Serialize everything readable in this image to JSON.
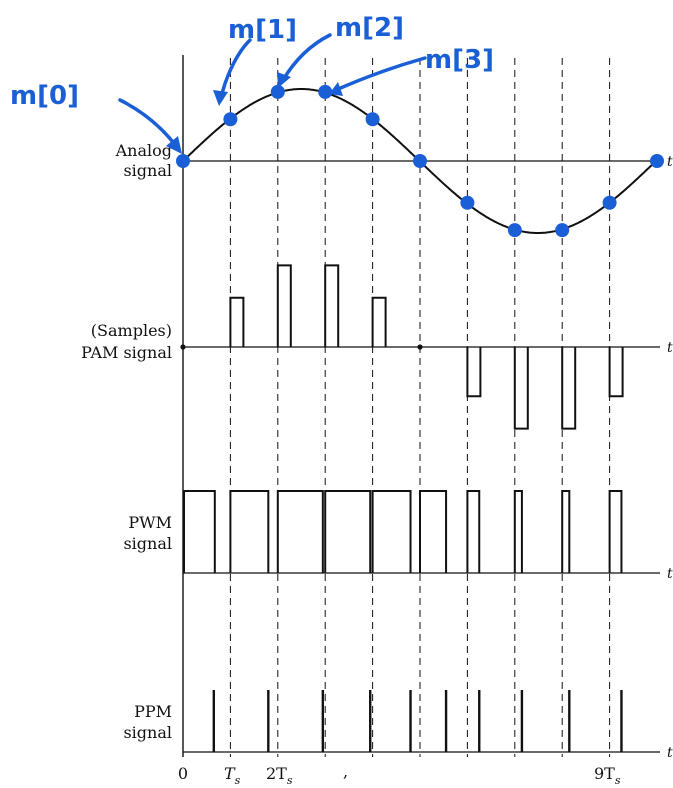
{
  "labels": {
    "analog": [
      "Analog",
      "signal"
    ],
    "pam": [
      "(Samples)",
      "PAM signal"
    ],
    "pwm": [
      "PWM",
      "signal"
    ],
    "ppm": [
      "PPM",
      "signal"
    ],
    "t": "t"
  },
  "ticks": {
    "zero": "0",
    "ts": "T",
    "two_ts": "2T",
    "nine_ts": "9T",
    "sub": "s",
    "comma": ","
  },
  "annotations": {
    "m0": "m[0]",
    "m1": "m[1]",
    "m2": "m[2]",
    "m3": "m[3]"
  },
  "colors": {
    "ink": "#111111",
    "annotation": "#1a5fd6"
  },
  "chart_data": {
    "type": "line",
    "sample_indices": [
      0,
      1,
      2,
      3,
      4,
      5,
      6,
      7,
      8,
      9,
      10
    ],
    "analog_samples": [
      0.0,
      0.58,
      0.96,
      0.96,
      0.58,
      0.0,
      -0.58,
      -0.96,
      -0.96,
      -0.58,
      0.0
    ],
    "pam_amplitudes": [
      0.0,
      0.58,
      0.96,
      0.96,
      0.58,
      0.0,
      -0.58,
      -0.96,
      -0.96,
      -0.58
    ],
    "pwm_duty": [
      0.65,
      0.8,
      0.95,
      0.95,
      0.8,
      0.55,
      0.25,
      0.15,
      0.15,
      0.25
    ],
    "ppm_position": [
      0.65,
      0.8,
      0.95,
      0.95,
      0.8,
      0.55,
      0.25,
      0.15,
      0.15,
      0.25
    ]
  }
}
